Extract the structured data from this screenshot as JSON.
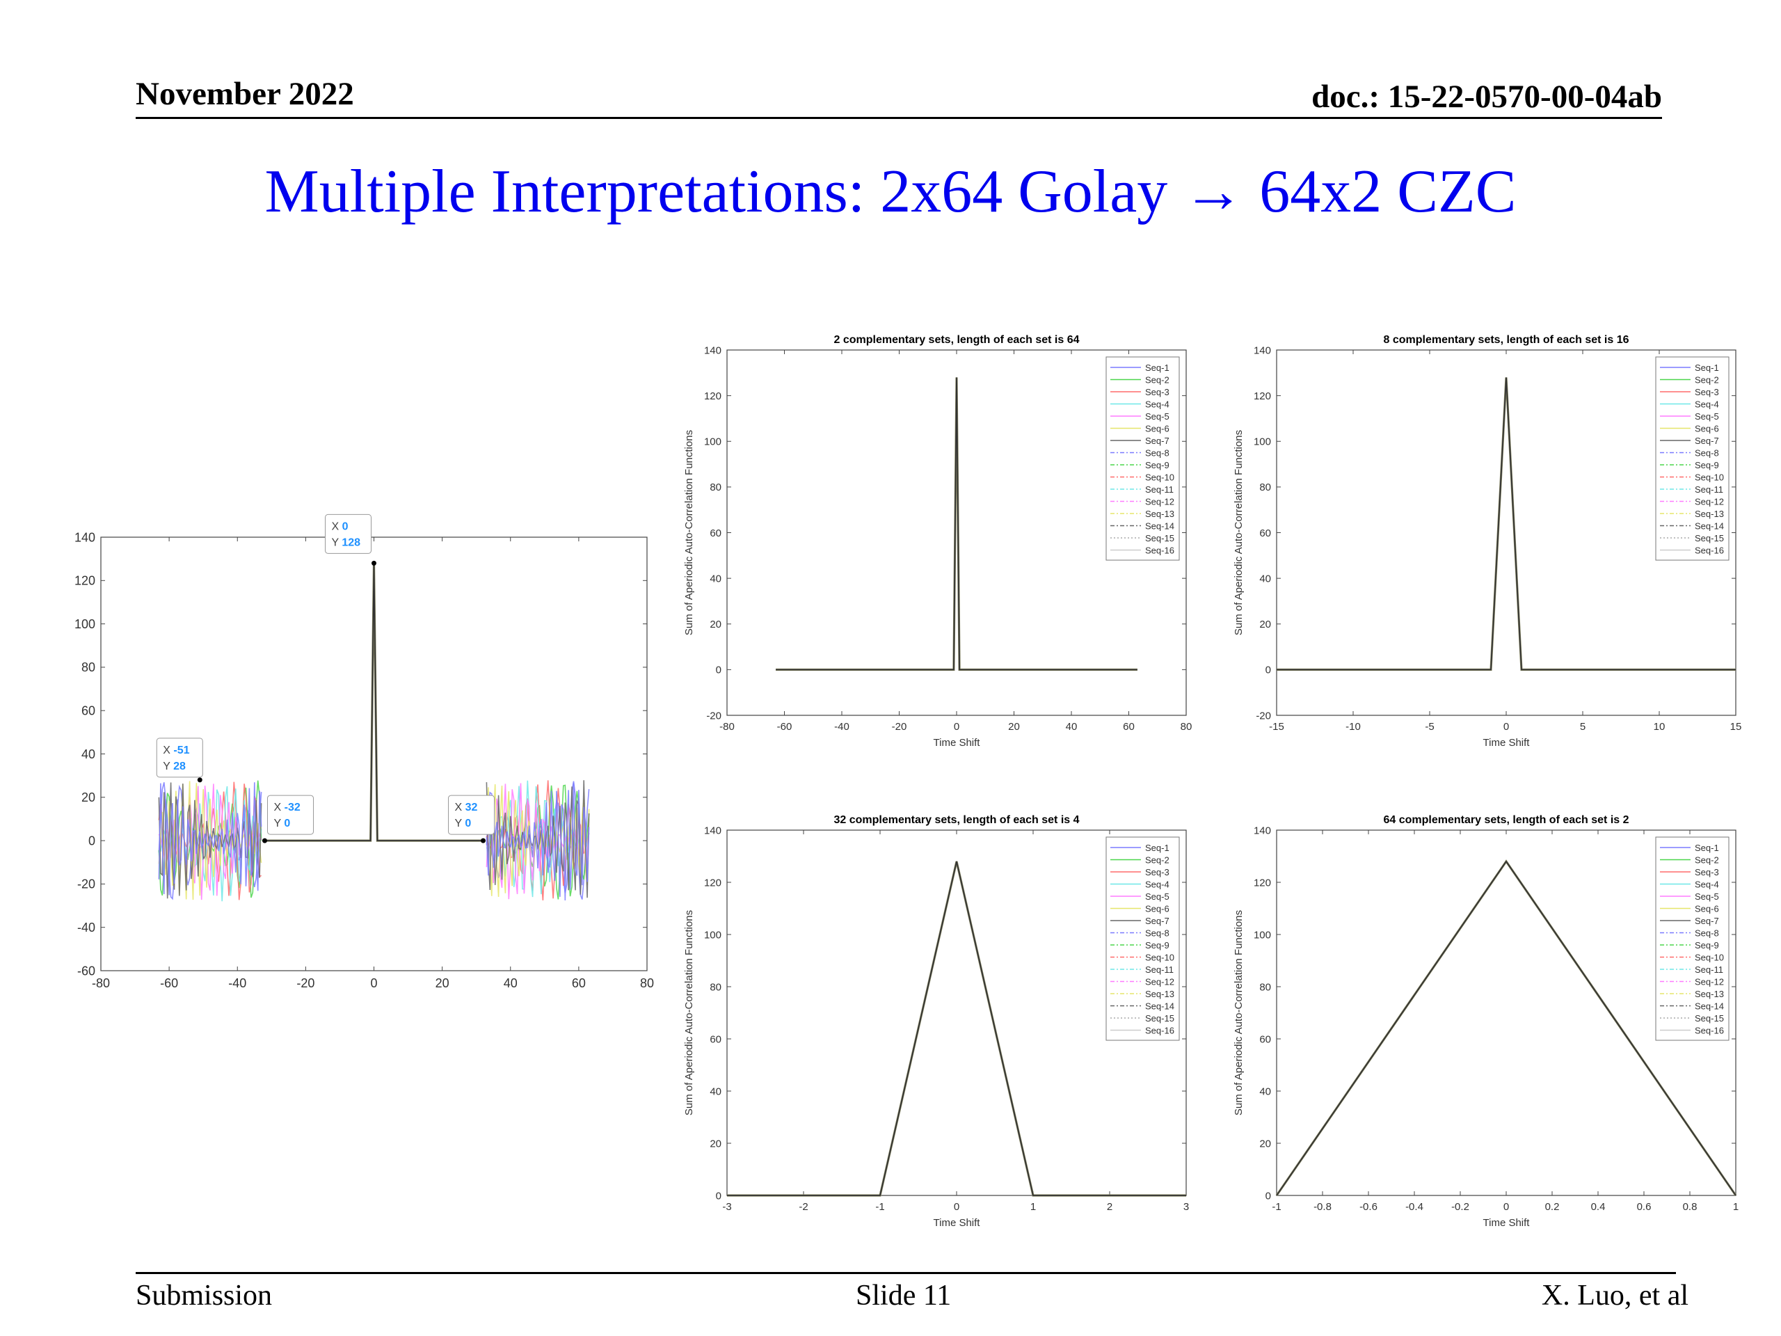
{
  "header": {
    "date": "November 2022",
    "doc": "doc.: 15-22-0570-00-04ab"
  },
  "title": "Multiple Interpretations: 2x64 Golay → 64x2 CZC",
  "footer": {
    "left": "Submission",
    "center": "Slide 11",
    "right": "X. Luo, et al"
  },
  "colors": {
    "title": "#0000ee",
    "datatip_value": "#1e90ff",
    "trace": "#333333"
  },
  "chart_data": [
    {
      "type": "line",
      "title": "",
      "xlabel": "",
      "ylabel": "",
      "xlim": [
        -80,
        80
      ],
      "ylim": [
        -60,
        140
      ],
      "xticks": [
        -80,
        -60,
        -40,
        -20,
        0,
        20,
        40,
        60,
        80
      ],
      "yticks": [
        -60,
        -40,
        -20,
        0,
        20,
        40,
        60,
        80,
        100,
        120,
        140
      ],
      "grid": false,
      "legend": false,
      "series": [
        {
          "x": [
            -32,
            -1,
            0,
            1,
            32
          ],
          "y": [
            0,
            0,
            128,
            0,
            0
          ]
        }
      ],
      "noise_regions": [
        [
          -63,
          -33
        ],
        [
          33,
          63
        ]
      ],
      "noise_amplitude": 28,
      "datatips": [
        {
          "x": "0",
          "y": "128"
        },
        {
          "x": "-51",
          "y": "28"
        },
        {
          "x": "-32",
          "y": "0"
        },
        {
          "x": "32",
          "y": "0"
        }
      ]
    },
    {
      "type": "line",
      "title": "2 complementary sets, length of each set is 64",
      "xlabel": "Time Shift",
      "ylabel": "Sum of Aperiodic Auto-Correlation Functions",
      "xlim": [
        -80,
        80
      ],
      "ylim": [
        -20,
        140
      ],
      "xticks": [
        -80,
        -60,
        -40,
        -20,
        0,
        20,
        40,
        60,
        80
      ],
      "yticks": [
        -20,
        0,
        20,
        40,
        60,
        80,
        100,
        120,
        140
      ],
      "legend_position": "top-right",
      "series": [
        {
          "x": [
            -63,
            -1,
            0,
            1,
            63
          ],
          "y": [
            0,
            0,
            128,
            0,
            0
          ]
        }
      ]
    },
    {
      "type": "line",
      "title": "8 complementary sets, length of each set is 16",
      "xlabel": "Time Shift",
      "ylabel": "Sum of Aperiodic Auto-Correlation Functions",
      "xlim": [
        -15,
        15
      ],
      "ylim": [
        -20,
        140
      ],
      "xticks": [
        -15,
        -10,
        -5,
        0,
        5,
        10,
        15
      ],
      "yticks": [
        -20,
        0,
        20,
        40,
        60,
        80,
        100,
        120,
        140
      ],
      "legend_position": "top-right",
      "series": [
        {
          "x": [
            -15,
            -1,
            0,
            1,
            15
          ],
          "y": [
            0,
            0,
            128,
            0,
            0
          ]
        }
      ]
    },
    {
      "type": "line",
      "title": "32 complementary sets, length of each set is 4",
      "xlabel": "Time Shift",
      "ylabel": "Sum of Aperiodic Auto-Correlation Functions",
      "xlim": [
        -3,
        3
      ],
      "ylim": [
        0,
        140
      ],
      "xticks": [
        -3,
        -2,
        -1,
        0,
        1,
        2,
        3
      ],
      "yticks": [
        0,
        20,
        40,
        60,
        80,
        100,
        120,
        140
      ],
      "legend_position": "top-right",
      "series": [
        {
          "x": [
            -3,
            -1,
            0,
            1,
            3
          ],
          "y": [
            0,
            0,
            128,
            0,
            0
          ]
        }
      ]
    },
    {
      "type": "line",
      "title": "64 complementary sets, length of each set is 2",
      "xlabel": "Time Shift",
      "ylabel": "Sum of Aperiodic Auto-Correlation Functions",
      "xlim": [
        -1,
        1
      ],
      "ylim": [
        0,
        140
      ],
      "xticks": [
        -1,
        -0.8,
        -0.6,
        -0.4,
        -0.2,
        0,
        0.2,
        0.4,
        0.6,
        0.8,
        1
      ],
      "yticks": [
        0,
        20,
        40,
        60,
        80,
        100,
        120,
        140
      ],
      "legend_position": "top-right",
      "series": [
        {
          "x": [
            -1,
            0,
            1
          ],
          "y": [
            0,
            128,
            0
          ]
        }
      ]
    }
  ],
  "legend_entries": [
    {
      "label": "Seq-1",
      "color": "#7b7bff",
      "dash": ""
    },
    {
      "label": "Seq-2",
      "color": "#4cd64c",
      "dash": ""
    },
    {
      "label": "Seq-3",
      "color": "#ff6b6b",
      "dash": ""
    },
    {
      "label": "Seq-4",
      "color": "#6ee7e7",
      "dash": ""
    },
    {
      "label": "Seq-5",
      "color": "#ff7bff",
      "dash": ""
    },
    {
      "label": "Seq-6",
      "color": "#e6e66a",
      "dash": ""
    },
    {
      "label": "Seq-7",
      "color": "#666666",
      "dash": ""
    },
    {
      "label": "Seq-8",
      "color": "#7b7bff",
      "dash": "6 3 2 3"
    },
    {
      "label": "Seq-9",
      "color": "#4cd64c",
      "dash": "6 3 2 3"
    },
    {
      "label": "Seq-10",
      "color": "#ff6b6b",
      "dash": "6 3 2 3"
    },
    {
      "label": "Seq-11",
      "color": "#6ee7e7",
      "dash": "6 3 2 3"
    },
    {
      "label": "Seq-12",
      "color": "#ff7bff",
      "dash": "6 3 2 3"
    },
    {
      "label": "Seq-13",
      "color": "#e6e66a",
      "dash": "6 3 2 3"
    },
    {
      "label": "Seq-14",
      "color": "#666666",
      "dash": "6 3 2 3"
    },
    {
      "label": "Seq-15",
      "color": "#aaaaaa",
      "dash": "2 3"
    },
    {
      "label": "Seq-16",
      "color": "#cccccc",
      "dash": ""
    }
  ]
}
